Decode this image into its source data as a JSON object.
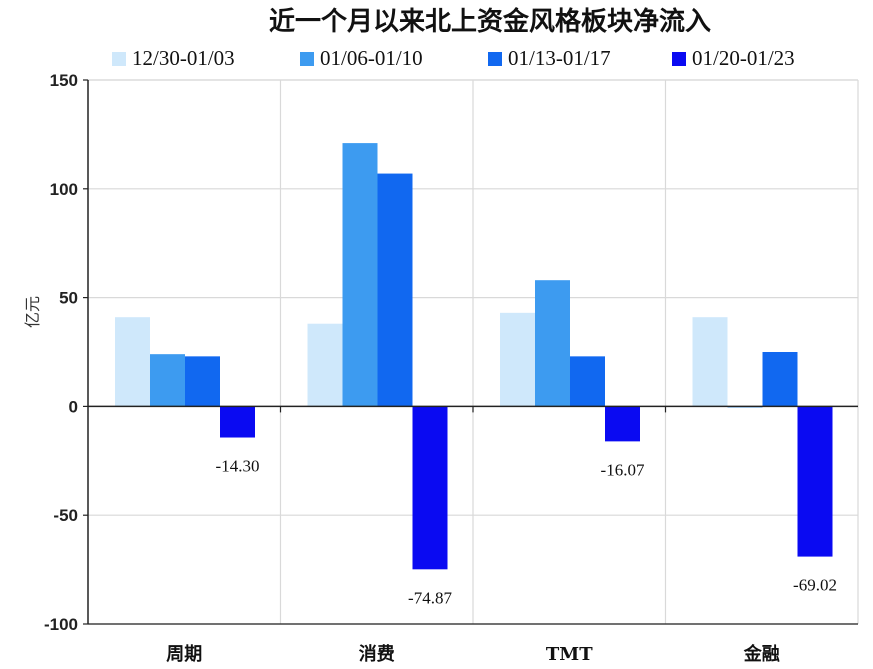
{
  "chart_data": {
    "type": "bar",
    "title": "近一个月以来北上资金风格板块净流入",
    "ylabel": "亿元",
    "xlabel": "",
    "ylim": [
      -100,
      150
    ],
    "yticks": [
      150,
      100,
      50,
      0,
      -50,
      -100
    ],
    "grid": true,
    "legend_position": "top",
    "categories": [
      "周期",
      "消费",
      "TMT",
      "金融"
    ],
    "series": [
      {
        "name": "12/30-01/03",
        "color": "#cfe8fb",
        "values": [
          41,
          38,
          43,
          41
        ]
      },
      {
        "name": "01/06-01/10",
        "color": "#3d9bf0",
        "values": [
          24,
          121,
          58,
          -0.5
        ]
      },
      {
        "name": "01/13-01/17",
        "color": "#1168f0",
        "values": [
          23,
          107,
          23,
          25
        ]
      },
      {
        "name": "01/20-01/23",
        "color": "#0a0af2",
        "values": [
          -14.3,
          -74.87,
          -16.07,
          -69.02
        ]
      }
    ],
    "data_labels": [
      {
        "series": 3,
        "category": 0,
        "text": "-14.30"
      },
      {
        "series": 3,
        "category": 1,
        "text": "-74.87"
      },
      {
        "series": 3,
        "category": 2,
        "text": "-16.07"
      },
      {
        "series": 3,
        "category": 3,
        "text": "-69.02"
      }
    ]
  }
}
